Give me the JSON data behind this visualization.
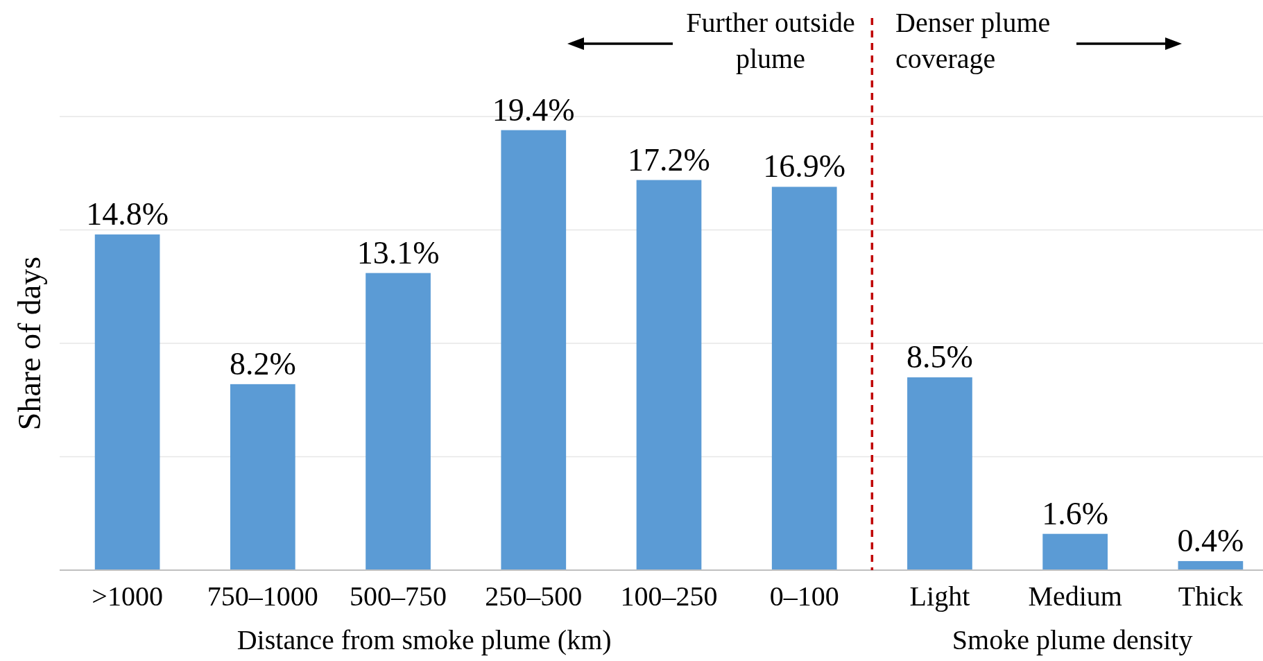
{
  "chart_data": {
    "type": "bar",
    "ylabel": "Share of days",
    "xlabel": "Distance from smoke plume (km)",
    "categories": [
      ">1000",
      "750–1000",
      "500–750",
      "250–500",
      "100–250",
      "0–100",
      "Light",
      "Medium",
      "Thick"
    ],
    "values": [
      14.8,
      8.2,
      13.1,
      19.4,
      17.2,
      16.9,
      8.5,
      1.6,
      0.4
    ],
    "value_labels": [
      "14.8%",
      "8.2%",
      "13.1%",
      "19.4%",
      "17.2%",
      "16.9%",
      "8.5%",
      "1.6%",
      "0.4%"
    ],
    "color": "#5b9bd5",
    "ylim": [
      0,
      20
    ],
    "yticks": [
      {
        "value": 0,
        "label": null
      },
      {
        "value": 5,
        "label": null
      },
      {
        "value": 10,
        "label": null
      },
      {
        "value": 15,
        "label": null
      },
      {
        "value": 20,
        "label": null
      }
    ],
    "tick_labels": "x",
    "grid": "y",
    "ref_lines": [
      {
        "axis": "x",
        "value": "Light",
        "color": "#c00000",
        "line_style": "dashed"
      }
    ],
    "annotations": [
      "Smoke plume density",
      "Further outside plume",
      "Denser plume coverage"
    ]
  }
}
